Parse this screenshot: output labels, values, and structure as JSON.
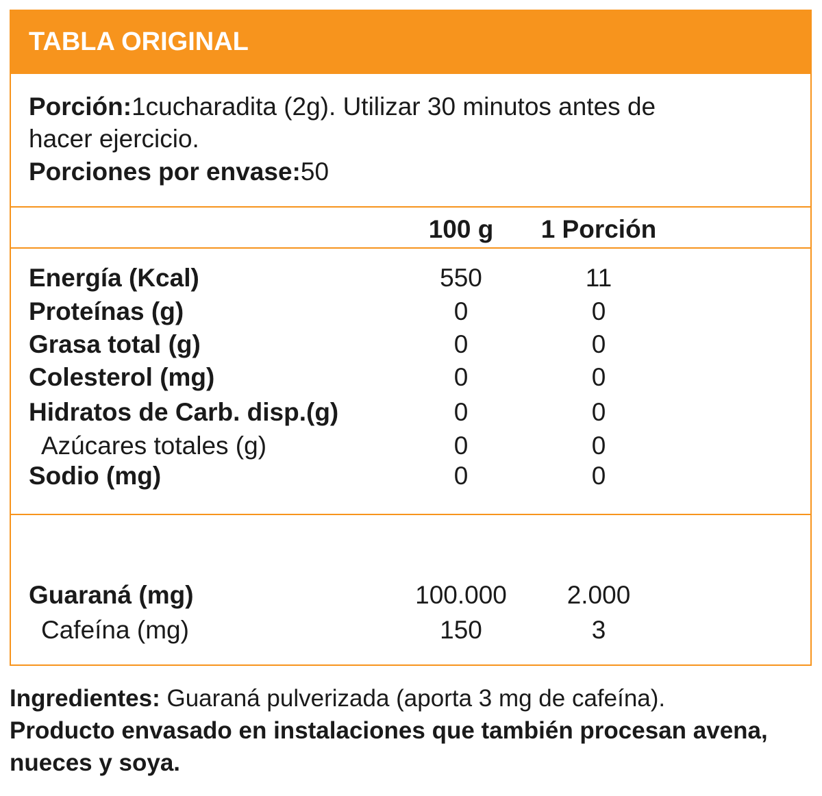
{
  "header": {
    "title": "TABLA ORIGINAL"
  },
  "portion": {
    "label": "Porción:",
    "text_line1": "1cucharadita (2g). Utilizar 30 minutos antes de",
    "text_line2": "hacer ejercicio.",
    "per_container_label": "Porciones por envase:",
    "per_container_value": "50"
  },
  "columns": {
    "per_100g": "100 g",
    "per_portion": "1 Porción"
  },
  "nutrients": [
    {
      "name": "Energía (Kcal)",
      "per_100g": "550",
      "per_portion": "11"
    },
    {
      "name": "Proteínas (g)",
      "per_100g": "0",
      "per_portion": "0"
    },
    {
      "name": "Grasa total (g)",
      "per_100g": "0",
      "per_portion": "0"
    },
    {
      "name": "Colesterol (mg)",
      "per_100g": "0",
      "per_portion": "0"
    },
    {
      "name": "Hidratos de Carb. disp.(g)",
      "per_100g": "0",
      "per_portion": "0"
    },
    {
      "name": "Azúcares totales (g)",
      "per_100g": "0",
      "per_portion": "0"
    },
    {
      "name": "Sodio (mg)",
      "per_100g": "0",
      "per_portion": "0"
    }
  ],
  "extras": [
    {
      "name": "Guaraná (mg)",
      "per_100g": "100.000",
      "per_portion": "2.000"
    },
    {
      "name": "Cafeína (mg)",
      "per_100g": "150",
      "per_portion": "3"
    }
  ],
  "footer": {
    "ingredients_label": "Ingredientes:",
    "ingredients_text": " Guaraná pulverizada (aporta 3 mg de cafeína).",
    "warning_line1": "Producto envasado en instalaciones que también procesan avena,",
    "warning_line2": "nueces y soya."
  },
  "colors": {
    "accent": "#f7941d",
    "text": "#1a1a1a",
    "header_text": "#ffffff"
  }
}
